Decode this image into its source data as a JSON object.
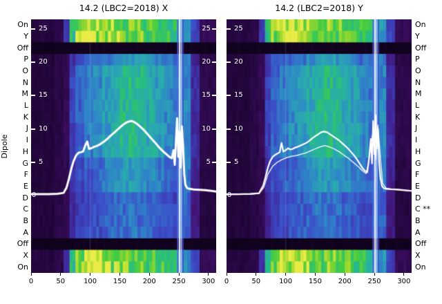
{
  "figure": {
    "background": "#ffffff",
    "dipole_axis_label": "Dipole",
    "row_labels_left": [
      "On",
      "Y",
      "Off",
      "P",
      "O",
      "N",
      "M",
      "L",
      "K",
      "J",
      "I",
      "H",
      "G",
      "F",
      "E",
      "D",
      "C",
      "B",
      "A",
      "Off",
      "X",
      "On"
    ],
    "row_labels_right": [
      "On",
      "Y",
      "Off",
      "P",
      "O",
      "N",
      "M",
      "L",
      "K",
      "J",
      "I",
      "H",
      "G",
      "F",
      "E",
      "D",
      "C **",
      "B",
      "A",
      "Off",
      "X",
      "On"
    ]
  },
  "chart_data": {
    "type": "heatmap",
    "x_range": [
      0,
      313
    ],
    "x_ticks": [
      0,
      50,
      100,
      150,
      200,
      250,
      300
    ],
    "overlay_axis": {
      "ticks": [
        25,
        20,
        15,
        10,
        5
      ],
      "zero_label": "0",
      "range": [
        -11.62,
        26.45
      ]
    },
    "panels": [
      {
        "title": "14.2 (LBC2=2018) X",
        "traces": [
          {
            "name": "signal-trace-x",
            "color": "#ffffff",
            "width": 3,
            "x": [
              0,
              15,
              30,
              45,
              55,
              60,
              64,
              68,
              72,
              76,
              80,
              84,
              88,
              92,
              95,
              98,
              102,
              106,
              110,
              115,
              120,
              125,
              130,
              135,
              140,
              145,
              150,
              155,
              160,
              165,
              170,
              175,
              180,
              185,
              190,
              195,
              200,
              205,
              210,
              215,
              220,
              225,
              230,
              234,
              238,
              241,
              243,
              245,
              247,
              249,
              251,
              253,
              255,
              257,
              259,
              261,
              264,
              268,
              275,
              285,
              295,
              305,
              313
            ],
            "y": [
              0.2,
              0.2,
              0.2,
              0.25,
              0.4,
              1.2,
              2.5,
              4.0,
              5.2,
              6.0,
              6.4,
              6.5,
              6.6,
              7.6,
              8.1,
              7.0,
              7.1,
              7.3,
              7.4,
              7.6,
              7.9,
              8.2,
              8.6,
              9.0,
              9.4,
              9.8,
              10.2,
              10.6,
              10.9,
              11.1,
              11.2,
              11.0,
              10.7,
              10.3,
              9.9,
              9.4,
              8.9,
              8.4,
              7.9,
              7.4,
              6.9,
              6.5,
              6.1,
              5.8,
              5.6,
              6.8,
              4.6,
              8.2,
              11.6,
              5.8,
              9.6,
              4.2,
              10.4,
              7.6,
              3.2,
              1.6,
              1.1,
              1.0,
              0.9,
              0.85,
              0.8,
              0.7,
              0.6
            ]
          }
        ]
      },
      {
        "title": "14.2 (LBC2=2018) Y",
        "traces": [
          {
            "name": "signal-trace-y-main",
            "color": "#ffffff",
            "width": 2.2,
            "x": [
              0,
              20,
              40,
              55,
              62,
              66,
              70,
              74,
              78,
              82,
              86,
              90,
              93,
              96,
              100,
              104,
              108,
              112,
              116,
              120,
              125,
              130,
              135,
              140,
              145,
              150,
              155,
              160,
              165,
              170,
              175,
              180,
              185,
              190,
              195,
              200,
              205,
              210,
              215,
              220,
              225,
              230,
              234,
              238,
              241,
              244,
              246,
              248,
              250,
              252,
              254,
              256,
              258,
              260,
              263,
              266,
              270,
              278,
              290,
              302,
              313
            ],
            "y": [
              0.2,
              0.2,
              0.25,
              0.35,
              1.5,
              2.8,
              4.2,
              5.2,
              5.8,
              6.1,
              6.3,
              6.5,
              7.9,
              6.6,
              6.8,
              7.1,
              6.9,
              7.0,
              7.2,
              7.3,
              7.5,
              7.7,
              7.9,
              8.2,
              8.6,
              8.9,
              9.2,
              9.5,
              9.6,
              9.5,
              9.2,
              8.9,
              8.6,
              8.3,
              7.9,
              7.5,
              7.1,
              6.6,
              6.1,
              5.5,
              4.8,
              4.1,
              3.7,
              3.5,
              5.5,
              8.5,
              4.8,
              11.2,
              6.2,
              12.1,
              7.0,
              10.0,
              5.0,
              2.8,
              1.4,
              1.1,
              1.0,
              0.95,
              0.9,
              0.8,
              0.7
            ]
          },
          {
            "name": "signal-trace-y-secondary",
            "color": "#ffffff",
            "width": 1.3,
            "x": [
              0,
              40,
              55,
              63,
              70,
              78,
              86,
              94,
              102,
              110,
              118,
              126,
              134,
              142,
              150,
              158,
              166,
              174,
              182,
              190,
              198,
              206,
              214,
              222,
              230,
              236,
              240,
              244,
              248,
              252,
              256,
              260,
              264,
              270,
              280,
              295,
              313
            ],
            "y": [
              0.15,
              0.2,
              0.3,
              1.2,
              3.2,
              4.4,
              5.0,
              5.4,
              5.7,
              5.9,
              6.0,
              6.2,
              6.4,
              6.7,
              7.0,
              7.3,
              7.5,
              7.3,
              7.0,
              6.6,
              6.1,
              5.6,
              5.0,
              4.4,
              3.7,
              3.3,
              4.8,
              7.5,
              9.8,
              5.4,
              10.6,
              6.0,
              1.8,
              1.1,
              0.95,
              0.8,
              0.65
            ]
          }
        ]
      }
    ],
    "heatmap": {
      "x_edges": [
        0,
        20,
        40,
        55,
        65,
        75,
        90,
        105,
        120,
        135,
        150,
        165,
        180,
        195,
        210,
        225,
        240,
        247,
        259,
        270,
        285,
        313
      ],
      "row_profile_map": [
        "band",
        "band",
        "off",
        "mid_b",
        "mid_a",
        "mid_a",
        "mid_a",
        "mid_a",
        "mid_a",
        "mid_a",
        "mid_a",
        "mid_a",
        "mid_b",
        "mid_b",
        "mid_b",
        "bot",
        "bot",
        "bot",
        "bot",
        "off",
        "band",
        "band"
      ],
      "profiles": {
        "band": [
          0.1,
          0.1,
          0.12,
          0.3,
          0.72,
          0.9,
          1.0,
          0.97,
          0.93,
          0.9,
          0.88,
          0.86,
          0.84,
          0.82,
          0.8,
          0.76,
          0.72,
          0.6,
          0.55,
          0.35,
          0.14
        ],
        "off": [
          0.03,
          0.03,
          0.03,
          0.03,
          0.03,
          0.03,
          0.03,
          0.03,
          0.03,
          0.03,
          0.03,
          0.03,
          0.03,
          0.03,
          0.03,
          0.03,
          0.03,
          0.03,
          0.03,
          0.03,
          0.03
        ],
        "mid_a": [
          0.09,
          0.09,
          0.11,
          0.14,
          0.34,
          0.42,
          0.48,
          0.52,
          0.57,
          0.62,
          0.68,
          0.7,
          0.68,
          0.63,
          0.58,
          0.52,
          0.47,
          0.55,
          0.5,
          0.28,
          0.12
        ],
        "mid_b": [
          0.09,
          0.09,
          0.11,
          0.13,
          0.3,
          0.37,
          0.41,
          0.44,
          0.48,
          0.52,
          0.56,
          0.57,
          0.55,
          0.52,
          0.48,
          0.45,
          0.42,
          0.52,
          0.46,
          0.25,
          0.11
        ],
        "bot": [
          0.09,
          0.09,
          0.11,
          0.13,
          0.27,
          0.33,
          0.36,
          0.38,
          0.41,
          0.43,
          0.46,
          0.46,
          0.44,
          0.42,
          0.4,
          0.37,
          0.35,
          0.5,
          0.42,
          0.22,
          0.1
        ]
      },
      "colormap_stops": [
        [
          0,
          "#090110"
        ],
        [
          0.08,
          "#1e0536"
        ],
        [
          0.18,
          "#43106b"
        ],
        [
          0.28,
          "#3f2a9e"
        ],
        [
          0.38,
          "#3b4ec8"
        ],
        [
          0.5,
          "#2f85c8"
        ],
        [
          0.62,
          "#2aaab0"
        ],
        [
          0.73,
          "#27bd82"
        ],
        [
          0.84,
          "#44cc42"
        ],
        [
          0.93,
          "#a6da2c"
        ],
        [
          1,
          "#e9eb46"
        ]
      ],
      "streaks": [
        {
          "x": 100,
          "w": 1,
          "color": "#ffffff28"
        },
        {
          "x": 248,
          "w": 1.5,
          "color": "#5560e8"
        },
        {
          "x": 251,
          "w": 2,
          "color": "#eef2ff"
        },
        {
          "x": 254,
          "w": 2,
          "color": "#aebcff"
        },
        {
          "x": 257,
          "w": 1.5,
          "color": "#3c43cf"
        }
      ]
    }
  }
}
